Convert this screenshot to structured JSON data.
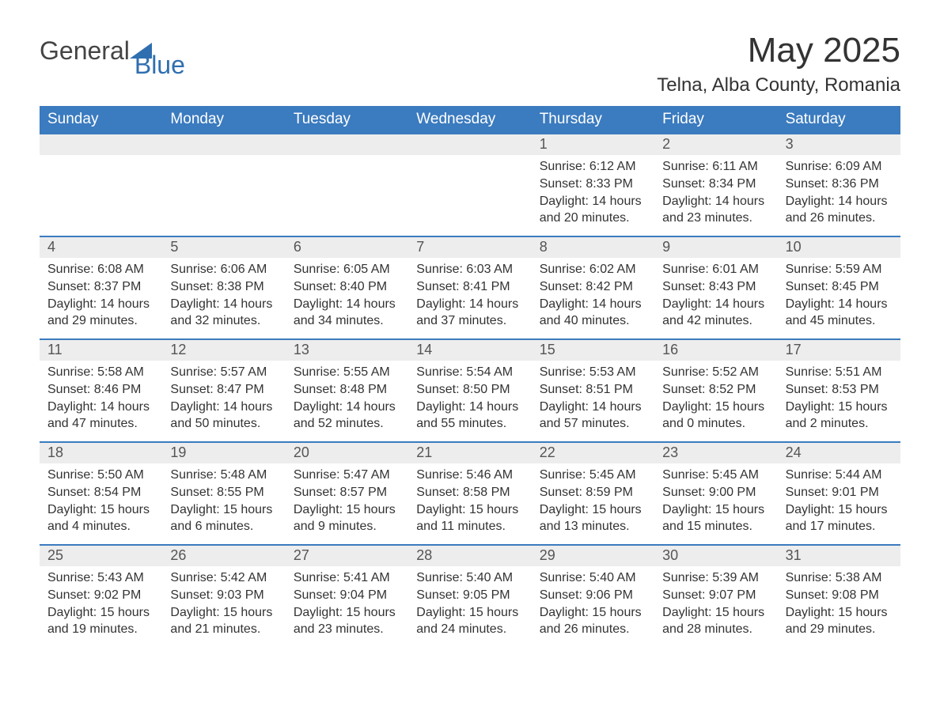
{
  "logo": {
    "word1": "General",
    "word2": "Blue"
  },
  "colors": {
    "header_bg": "#3b7bbf",
    "header_text": "#ffffff",
    "daynum_bg": "#ededed",
    "daynum_text": "#555555",
    "body_text": "#333333",
    "row_divider": "#3b7bbf",
    "logo_blue": "#2f6fb0",
    "page_bg": "#ffffff"
  },
  "typography": {
    "title_fontsize": 44,
    "location_fontsize": 24,
    "dow_fontsize": 19,
    "daynum_fontsize": 18,
    "body_fontsize": 16,
    "logo_fontsize": 32
  },
  "title": "May 2025",
  "location": "Telna, Alba County, Romania",
  "labels": {
    "sunrise": "Sunrise:",
    "sunset": "Sunset:",
    "daylight": "Daylight:"
  },
  "days_of_week": [
    "Sunday",
    "Monday",
    "Tuesday",
    "Wednesday",
    "Thursday",
    "Friday",
    "Saturday"
  ],
  "weeks": [
    [
      null,
      null,
      null,
      null,
      {
        "n": "1",
        "sunrise": "6:12 AM",
        "sunset": "8:33 PM",
        "daylight": "14 hours and 20 minutes."
      },
      {
        "n": "2",
        "sunrise": "6:11 AM",
        "sunset": "8:34 PM",
        "daylight": "14 hours and 23 minutes."
      },
      {
        "n": "3",
        "sunrise": "6:09 AM",
        "sunset": "8:36 PM",
        "daylight": "14 hours and 26 minutes."
      }
    ],
    [
      {
        "n": "4",
        "sunrise": "6:08 AM",
        "sunset": "8:37 PM",
        "daylight": "14 hours and 29 minutes."
      },
      {
        "n": "5",
        "sunrise": "6:06 AM",
        "sunset": "8:38 PM",
        "daylight": "14 hours and 32 minutes."
      },
      {
        "n": "6",
        "sunrise": "6:05 AM",
        "sunset": "8:40 PM",
        "daylight": "14 hours and 34 minutes."
      },
      {
        "n": "7",
        "sunrise": "6:03 AM",
        "sunset": "8:41 PM",
        "daylight": "14 hours and 37 minutes."
      },
      {
        "n": "8",
        "sunrise": "6:02 AM",
        "sunset": "8:42 PM",
        "daylight": "14 hours and 40 minutes."
      },
      {
        "n": "9",
        "sunrise": "6:01 AM",
        "sunset": "8:43 PM",
        "daylight": "14 hours and 42 minutes."
      },
      {
        "n": "10",
        "sunrise": "5:59 AM",
        "sunset": "8:45 PM",
        "daylight": "14 hours and 45 minutes."
      }
    ],
    [
      {
        "n": "11",
        "sunrise": "5:58 AM",
        "sunset": "8:46 PM",
        "daylight": "14 hours and 47 minutes."
      },
      {
        "n": "12",
        "sunrise": "5:57 AM",
        "sunset": "8:47 PM",
        "daylight": "14 hours and 50 minutes."
      },
      {
        "n": "13",
        "sunrise": "5:55 AM",
        "sunset": "8:48 PM",
        "daylight": "14 hours and 52 minutes."
      },
      {
        "n": "14",
        "sunrise": "5:54 AM",
        "sunset": "8:50 PM",
        "daylight": "14 hours and 55 minutes."
      },
      {
        "n": "15",
        "sunrise": "5:53 AM",
        "sunset": "8:51 PM",
        "daylight": "14 hours and 57 minutes."
      },
      {
        "n": "16",
        "sunrise": "5:52 AM",
        "sunset": "8:52 PM",
        "daylight": "15 hours and 0 minutes."
      },
      {
        "n": "17",
        "sunrise": "5:51 AM",
        "sunset": "8:53 PM",
        "daylight": "15 hours and 2 minutes."
      }
    ],
    [
      {
        "n": "18",
        "sunrise": "5:50 AM",
        "sunset": "8:54 PM",
        "daylight": "15 hours and 4 minutes."
      },
      {
        "n": "19",
        "sunrise": "5:48 AM",
        "sunset": "8:55 PM",
        "daylight": "15 hours and 6 minutes."
      },
      {
        "n": "20",
        "sunrise": "5:47 AM",
        "sunset": "8:57 PM",
        "daylight": "15 hours and 9 minutes."
      },
      {
        "n": "21",
        "sunrise": "5:46 AM",
        "sunset": "8:58 PM",
        "daylight": "15 hours and 11 minutes."
      },
      {
        "n": "22",
        "sunrise": "5:45 AM",
        "sunset": "8:59 PM",
        "daylight": "15 hours and 13 minutes."
      },
      {
        "n": "23",
        "sunrise": "5:45 AM",
        "sunset": "9:00 PM",
        "daylight": "15 hours and 15 minutes."
      },
      {
        "n": "24",
        "sunrise": "5:44 AM",
        "sunset": "9:01 PM",
        "daylight": "15 hours and 17 minutes."
      }
    ],
    [
      {
        "n": "25",
        "sunrise": "5:43 AM",
        "sunset": "9:02 PM",
        "daylight": "15 hours and 19 minutes."
      },
      {
        "n": "26",
        "sunrise": "5:42 AM",
        "sunset": "9:03 PM",
        "daylight": "15 hours and 21 minutes."
      },
      {
        "n": "27",
        "sunrise": "5:41 AM",
        "sunset": "9:04 PM",
        "daylight": "15 hours and 23 minutes."
      },
      {
        "n": "28",
        "sunrise": "5:40 AM",
        "sunset": "9:05 PM",
        "daylight": "15 hours and 24 minutes."
      },
      {
        "n": "29",
        "sunrise": "5:40 AM",
        "sunset": "9:06 PM",
        "daylight": "15 hours and 26 minutes."
      },
      {
        "n": "30",
        "sunrise": "5:39 AM",
        "sunset": "9:07 PM",
        "daylight": "15 hours and 28 minutes."
      },
      {
        "n": "31",
        "sunrise": "5:38 AM",
        "sunset": "9:08 PM",
        "daylight": "15 hours and 29 minutes."
      }
    ]
  ]
}
